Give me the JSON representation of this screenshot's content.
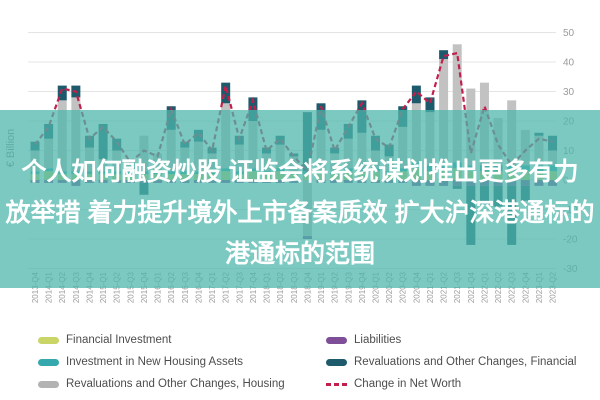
{
  "overlay": {
    "band_color": "rgba(77,182,172,0.74)",
    "text_color": "#ffffff",
    "lines": [
      "个人如何融资炒股 证监会将系统谋划推出更多有力",
      "放举措 着力提升境外上市备案质效 扩大沪深港通标的",
      "港通标的范围"
    ]
  },
  "chart_data": {
    "type": "bar",
    "stacked": true,
    "title": "",
    "xlabel": "",
    "ylabel": "€ Billion",
    "ylim": [
      -30,
      50
    ],
    "yticks": [
      50,
      40,
      30,
      20,
      10,
      0,
      -10,
      -20,
      -30
    ],
    "grid": true,
    "legend_position": "bottom",
    "grid_color": "#e4e4e4",
    "tick_label_color": "#9b9b9b",
    "categories": [
      "2013-Q4",
      "2014-Q1",
      "2014-Q2",
      "2014-Q3",
      "2014-Q4",
      "2015-Q1",
      "2015-Q2",
      "2015-Q3",
      "2015-Q4",
      "2016-Q1",
      "2016-Q2",
      "2016-Q3",
      "2016-Q4",
      "2017-Q1",
      "2017-Q2",
      "2017-Q3",
      "2017-Q4",
      "2018-Q1",
      "2018-Q2",
      "2018-Q3",
      "2018-Q4",
      "2019-Q1",
      "2019-Q2",
      "2019-Q3",
      "2019-Q4",
      "2020-Q1",
      "2020-Q2",
      "2020-Q3",
      "2020-Q4",
      "2021-Q1",
      "2021-Q2",
      "2021-Q3",
      "2021-Q4",
      "2022-Q1",
      "2022-Q2",
      "2022-Q3",
      "2022-Q4",
      "2023-Q1",
      "2023-Q2"
    ],
    "series": [
      {
        "name": "Financial Investment",
        "color": "#c9d567",
        "values": [
          2,
          3,
          2,
          2,
          2,
          2,
          2,
          2,
          2,
          2,
          2,
          2,
          2,
          2,
          3,
          2,
          3,
          2,
          3,
          2,
          2,
          2,
          2,
          3,
          3,
          3,
          2,
          3,
          4,
          3,
          4,
          4,
          3,
          3,
          3,
          3,
          3,
          3,
          3
        ]
      },
      {
        "name": "Investment in New Housing Assets",
        "color": "#35a8ad",
        "values": [
          1,
          1,
          1,
          1,
          1,
          1,
          1,
          1,
          1,
          1,
          1,
          1,
          1,
          1,
          1,
          1,
          1,
          1,
          1,
          1,
          1,
          1,
          1,
          1,
          1,
          1,
          1,
          1,
          2,
          2,
          2,
          2,
          2,
          2,
          2,
          2,
          2,
          2,
          2
        ]
      },
      {
        "name": "Revaluations and Other Changes, Housing",
        "color": "#c2c2c2",
        "values": [
          7,
          10,
          24,
          25,
          8,
          4,
          7,
          3,
          12,
          6,
          14,
          8,
          10,
          6,
          22,
          9,
          16,
          6,
          8,
          5,
          -19,
          14,
          6,
          10,
          12,
          6,
          5,
          14,
          20,
          18,
          35,
          40,
          26,
          28,
          16,
          22,
          12,
          10,
          5
        ]
      },
      {
        "name": "Liabilities",
        "color": "#7e4e98",
        "values": [
          -1,
          -1,
          -1,
          -2,
          -1,
          -1,
          -1,
          -1,
          -1,
          -1,
          -1,
          -1,
          -1,
          -1,
          -1,
          -1,
          -1,
          -1,
          -1,
          -1,
          -1,
          -1,
          -1,
          -1,
          -1,
          -1,
          -1,
          -1,
          -2,
          -2,
          -2,
          -2,
          -2,
          -2,
          -2,
          -2,
          -2,
          -2,
          -2
        ]
      },
      {
        "name": "Revaluations and Other Changes, Financial",
        "color": "#1d5a6c",
        "values": [
          3,
          5,
          5,
          4,
          4,
          12,
          4,
          1,
          -4,
          0,
          8,
          2,
          4,
          2,
          7,
          3,
          8,
          2,
          3,
          1,
          20,
          9,
          2,
          5,
          11,
          5,
          4,
          7,
          6,
          5,
          3,
          -1,
          -20,
          -6,
          -7,
          -20,
          -5,
          1,
          5
        ]
      }
    ],
    "line_series": {
      "name": "Change in Net Worth",
      "color": "#c2204c",
      "dashed": true,
      "values": [
        12,
        18,
        31,
        30,
        14,
        18,
        13,
        6,
        10,
        8,
        24,
        12,
        16,
        10,
        32,
        14,
        27,
        10,
        14,
        8,
        3,
        25,
        10,
        18,
        26,
        14,
        11,
        24,
        30,
        26,
        42,
        43,
        9,
        25,
        12,
        5,
        10,
        14,
        13
      ]
    }
  },
  "legend": {
    "columns": [
      [
        {
          "label": "Financial Investment",
          "swatch_color": "#c9d567",
          "swatch_type": "bar"
        },
        {
          "label": "Investment in New Housing Assets",
          "swatch_color": "#35a8ad",
          "swatch_type": "bar"
        },
        {
          "label": "Revaluations and Other Changes, Housing",
          "swatch_color": "#b3b3b3",
          "swatch_type": "bar"
        }
      ],
      [
        {
          "label": "Liabilities",
          "swatch_color": "#7e4e98",
          "swatch_type": "bar"
        },
        {
          "label": "Revaluations and Other Changes, Financial",
          "swatch_color": "#1d5a6c",
          "swatch_type": "bar"
        },
        {
          "label": "Change in Net Worth",
          "swatch_color": "#c2204c",
          "swatch_type": "dashed-line"
        }
      ]
    ]
  }
}
